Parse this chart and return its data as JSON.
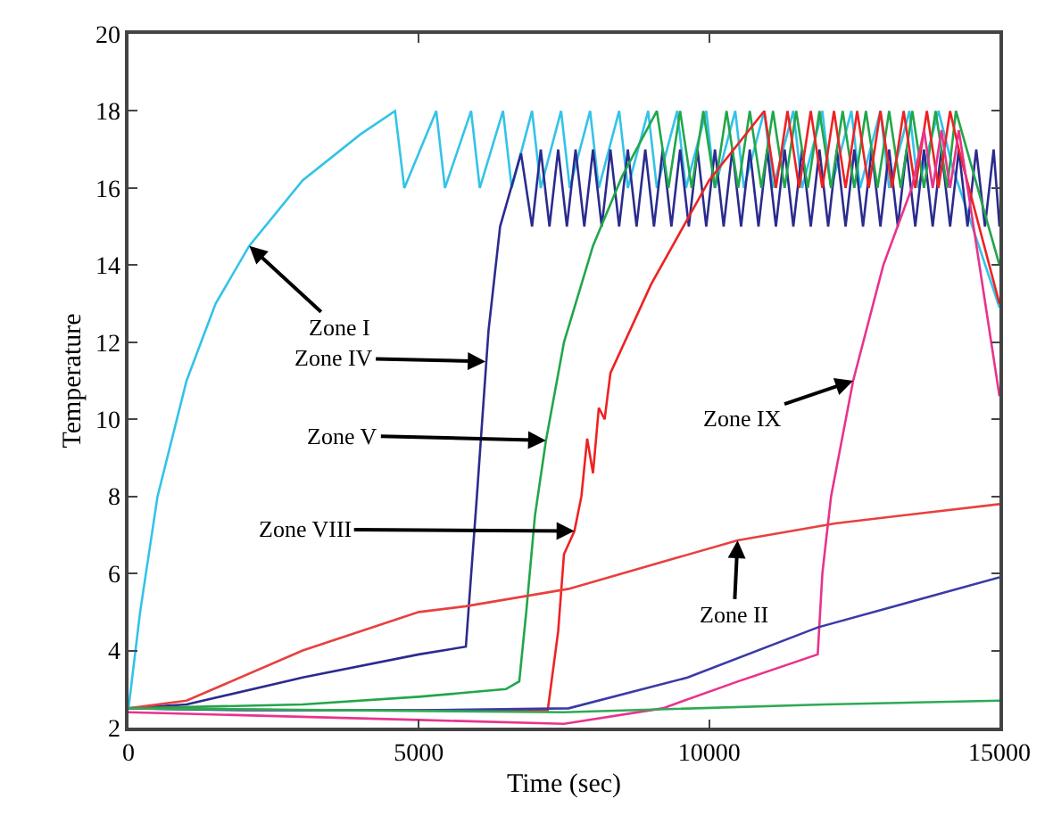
{
  "chart_data": {
    "type": "line",
    "xlabel": "Time (sec)",
    "ylabel": "Temperature",
    "xlim": [
      0,
      15000
    ],
    "ylim": [
      2,
      20
    ],
    "xticks": [
      0,
      5000,
      10000,
      15000
    ],
    "yticks": [
      2,
      4,
      6,
      8,
      10,
      12,
      14,
      16,
      18,
      20
    ],
    "marker": "none",
    "line_style": "solid",
    "series": [
      {
        "color": "#33c3e8",
        "x": [
          0,
          200,
          500,
          1000,
          1500,
          2080,
          3000,
          4000,
          4590,
          4750,
          5300,
          5450,
          5900,
          6050,
          6450,
          6600,
          6950,
          7100,
          7450,
          7600,
          7950,
          8100,
          8450,
          8600,
          8950,
          9100,
          9450,
          9600,
          9950,
          10100,
          10450,
          10600,
          10950,
          11100,
          11450,
          11600,
          11950,
          12100,
          12450,
          12600,
          12950,
          13100,
          13450,
          13600,
          13950,
          14200,
          15000
        ],
        "values": [
          2.5,
          5.0,
          8.0,
          11.0,
          13.0,
          14.5,
          16.2,
          17.4,
          18,
          16,
          18,
          16,
          18,
          16,
          18,
          16,
          18,
          16,
          18,
          16,
          18,
          16,
          18,
          16,
          18,
          16,
          18,
          16,
          18,
          16,
          18,
          16,
          18,
          16,
          18,
          16,
          18,
          16,
          18,
          16,
          18,
          16,
          18,
          16,
          18,
          16.5,
          12.9
        ]
      },
      {
        "color": "#2b2b8f",
        "x": [
          0,
          1000,
          3000,
          5000,
          5810,
          6000,
          6200,
          6400,
          6760,
          6950,
          7100,
          7250,
          7400,
          7550,
          7700,
          7850,
          8000,
          8150,
          8300,
          8450,
          8600,
          8750,
          8900,
          9050,
          9200,
          9350,
          9500,
          9650,
          9800,
          9950,
          10100,
          10250,
          10400,
          10550,
          10700,
          10850,
          11000,
          11150,
          11300,
          11450,
          11600,
          11750,
          11900,
          12050,
          12200,
          12350,
          12500,
          12650,
          12800,
          12950,
          13100,
          13250,
          13400,
          13550,
          13700,
          13850,
          14000,
          14150,
          14300,
          14450,
          14600,
          14750,
          14900,
          15000
        ],
        "values": [
          2.5,
          2.6,
          3.3,
          3.9,
          4.1,
          8,
          12.3,
          15,
          16.9,
          15,
          17,
          15,
          17,
          15,
          17,
          15,
          17,
          15,
          17,
          15,
          17,
          15,
          17,
          15,
          17,
          15,
          17,
          15,
          17,
          15,
          17,
          15,
          17,
          15,
          17,
          15,
          17,
          15,
          17,
          15,
          17,
          15,
          17,
          15,
          17,
          15,
          17,
          15,
          17,
          15,
          17,
          15,
          17,
          15,
          17,
          15,
          17,
          15,
          17,
          15,
          17,
          15,
          17,
          15
        ]
      },
      {
        "color": "#22a64a",
        "x": [
          0,
          3000,
          5000,
          6500,
          6730,
          6850,
          7000,
          7190,
          7500,
          8000,
          8500,
          9100,
          9300,
          9500,
          9700,
          9900,
          10100,
          10300,
          10500,
          10700,
          10900,
          11100,
          11300,
          11500,
          11700,
          11900,
          12100,
          12300,
          12500,
          12700,
          12900,
          13100,
          13300,
          13500,
          13700,
          13900,
          14100,
          14250,
          15000
        ],
        "values": [
          2.5,
          2.6,
          2.8,
          3.0,
          3.2,
          5,
          7.5,
          9.45,
          12,
          14.5,
          16.3,
          18,
          16,
          18,
          16,
          18,
          16,
          18,
          16,
          18,
          16,
          18,
          16,
          18,
          16,
          18,
          16,
          18,
          16,
          18,
          16,
          18,
          16,
          18,
          16,
          18,
          16,
          18,
          14
        ]
      },
      {
        "color": "#ee2222",
        "x": [
          0,
          3000,
          7220,
          7400,
          7500,
          7680,
          7800,
          7900,
          8000,
          8100,
          8200,
          8300,
          9000,
          10000,
          10950,
          11150,
          11350,
          11550,
          11750,
          11950,
          12150,
          12350,
          12550,
          12750,
          12950,
          13150,
          13350,
          13550,
          13750,
          13950,
          14150,
          14300,
          15000
        ],
        "values": [
          2.5,
          2.45,
          2.45,
          4.5,
          6.5,
          7.1,
          8.0,
          9.5,
          8.6,
          10.3,
          10.0,
          11.2,
          13.5,
          16.2,
          18,
          16,
          18,
          16,
          18,
          16,
          18,
          16,
          18,
          16,
          18,
          16,
          18,
          16,
          18,
          16,
          18,
          17,
          13
        ]
      },
      {
        "color": "#e8338c",
        "x": [
          0,
          5000,
          7500,
          9200,
          10500,
          11870,
          11950,
          12100,
          12480,
          13000,
          13490,
          13700,
          13850,
          14000,
          14150,
          14300,
          15000
        ],
        "values": [
          2.4,
          2.2,
          2.1,
          2.5,
          3.2,
          3.9,
          6,
          8,
          11,
          14,
          16,
          17.5,
          16,
          17.5,
          16,
          17.5,
          10.6
        ]
      },
      {
        "color": "#e84040",
        "x": [
          0,
          1000,
          3000,
          5000,
          5810,
          7580,
          10490,
          12170,
          15000
        ],
        "values": [
          2.5,
          2.7,
          4.0,
          5.0,
          5.15,
          5.6,
          6.86,
          7.3,
          7.8
        ]
      },
      {
        "color": "#3a3aa8",
        "x": [
          0,
          2000,
          5000,
          7580,
          9630,
          11870,
          15000
        ],
        "values": [
          2.5,
          2.45,
          2.45,
          2.5,
          3.3,
          4.6,
          5.9
        ]
      },
      {
        "color": "#2eaa55",
        "x": [
          0,
          7500,
          12000,
          15000
        ],
        "values": [
          2.5,
          2.4,
          2.6,
          2.7
        ]
      }
    ],
    "annotations": [
      {
        "text": "Zone I",
        "x": 2080,
        "y": 14.5
      },
      {
        "text": "Zone IV",
        "x": 6150,
        "y": 11.5
      },
      {
        "text": "Zone V",
        "x": 7190,
        "y": 9.45
      },
      {
        "text": "Zone VIII",
        "x": 7680,
        "y": 7.1
      },
      {
        "text": "Zone IX",
        "x": 12480,
        "y": 11.0
      },
      {
        "text": "Zone II",
        "x": 10490,
        "y": 6.86
      }
    ]
  }
}
